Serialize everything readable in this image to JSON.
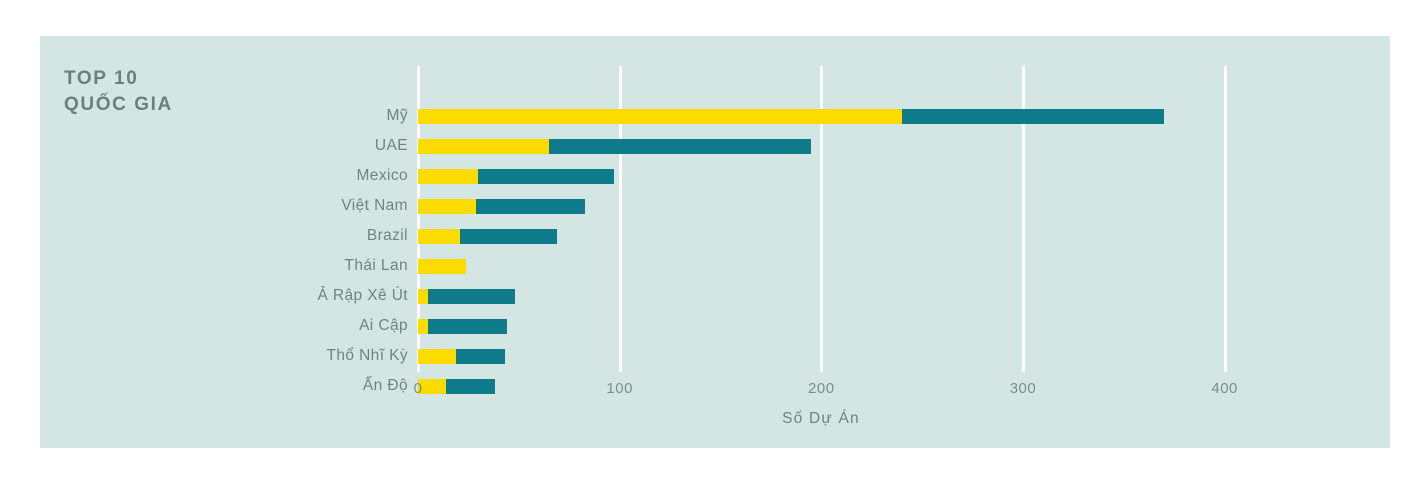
{
  "card": {
    "title": "TOP 10\nQUỐC GIA",
    "background": "#d3e6e4"
  },
  "chart_data": {
    "type": "bar",
    "orientation": "horizontal",
    "stacked": true,
    "title": "TOP 10 QUỐC GIA",
    "xlabel": "Số Dự Án",
    "ylabel": "",
    "categories": [
      "Mỹ",
      "UAE",
      "Mexico",
      "Việt Nam",
      "Brazil",
      "Thái Lan",
      "Ả Rập Xê Út",
      "Ai Cập",
      "Thổ Nhĩ Kỳ",
      "Ấn Độ"
    ],
    "series": [
      {
        "name": "yellow",
        "color": "#fbdb00",
        "values": [
          240,
          65,
          30,
          29,
          21,
          24,
          5,
          5,
          19,
          14
        ]
      },
      {
        "name": "teal",
        "color": "#0e7b8b",
        "values": [
          130,
          130,
          67,
          54,
          48,
          0,
          43,
          39,
          24,
          24
        ]
      }
    ],
    "totals": [
      370,
      195,
      97,
      83,
      69,
      24,
      48,
      44,
      43,
      38
    ],
    "x_ticks": [
      0,
      100,
      200,
      300,
      400
    ],
    "xlim": [
      0,
      482
    ],
    "grid": "vertical white gridlines",
    "legend": "none",
    "gridline_color": "#ffffff"
  }
}
